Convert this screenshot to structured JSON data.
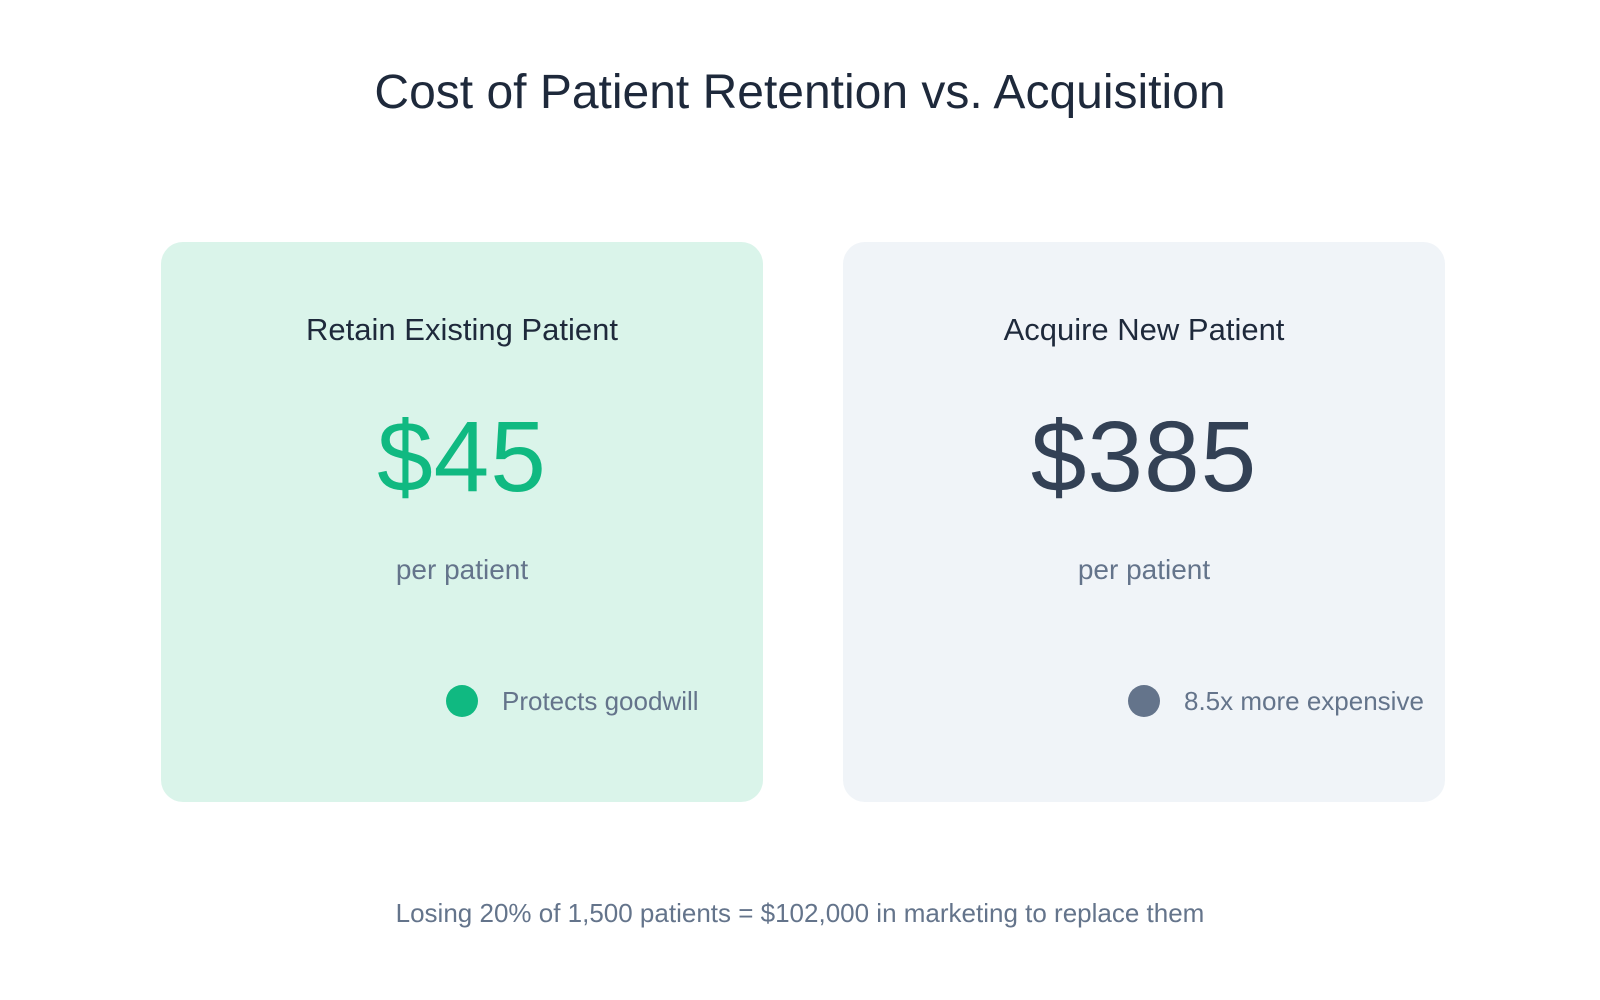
{
  "title": "Cost of Patient Retention vs. Acquisition",
  "cards": [
    {
      "heading": "Retain Existing Patient",
      "value": "$45",
      "unit": "per patient",
      "note": "Protects goodwill",
      "value_color": "#10b981",
      "dot_color": "#10b981",
      "background": "#daf4ea"
    },
    {
      "heading": "Acquire New Patient",
      "value": "$385",
      "unit": "per patient",
      "note": "8.5x more expensive",
      "value_color": "#334155",
      "dot_color": "#64748b",
      "background": "#f0f4f8"
    }
  ],
  "footnote": "Losing 20% of 1,500 patients = $102,000 in marketing to replace them",
  "chart_data": {
    "type": "table",
    "title": "Cost of Patient Retention vs. Acquisition",
    "categories": [
      "Retain Existing Patient",
      "Acquire New Patient"
    ],
    "values": [
      45,
      385
    ],
    "unit": "per patient",
    "annotations": [
      "Protects goodwill",
      "8.5x more expensive"
    ],
    "footnote": "Losing 20% of 1,500 patients = $102,000 in marketing to replace them"
  }
}
